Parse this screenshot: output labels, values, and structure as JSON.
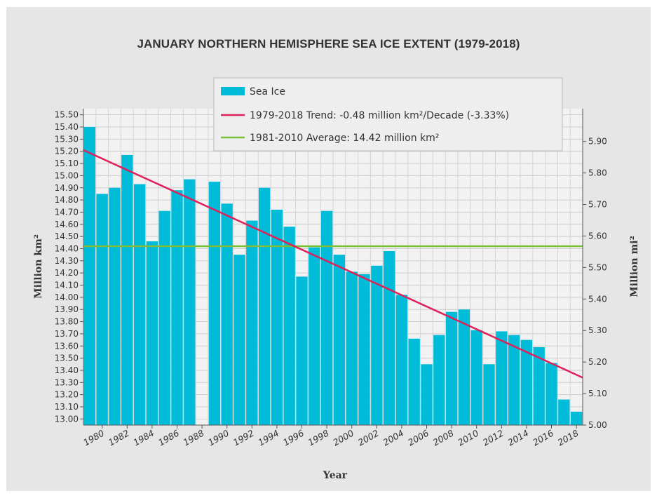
{
  "chart_data": {
    "type": "bar",
    "title": "JANUARY NORTHERN HEMISPHERE SEA ICE EXTENT (1979-2018)",
    "xlabel": "Year",
    "ylabel": "Million km²",
    "ylabel_right": "Million mi²",
    "ylim": [
      12.95,
      15.55
    ],
    "ylim_right_units": "mi²",
    "y_ticks": [
      "13.00",
      "13.10",
      "13.20",
      "13.30",
      "13.40",
      "13.50",
      "13.60",
      "13.70",
      "13.80",
      "13.90",
      "14.00",
      "14.10",
      "14.20",
      "14.30",
      "14.40",
      "14.50",
      "14.60",
      "14.70",
      "14.80",
      "14.90",
      "15.00",
      "15.10",
      "15.20",
      "15.30",
      "15.40",
      "15.50"
    ],
    "y_ticks_right": [
      "5.00",
      "5.10",
      "5.20",
      "5.30",
      "5.40",
      "5.50",
      "5.60",
      "5.70",
      "5.80",
      "5.90"
    ],
    "x_ticks": [
      "1980",
      "1982",
      "1984",
      "1986",
      "1988",
      "1990",
      "1992",
      "1994",
      "1996",
      "1998",
      "2000",
      "2002",
      "2004",
      "2006",
      "2008",
      "2010",
      "2012",
      "2014",
      "2016",
      "2018"
    ],
    "categories": [
      1979,
      1980,
      1981,
      1982,
      1983,
      1984,
      1985,
      1986,
      1987,
      1988,
      1989,
      1990,
      1991,
      1992,
      1993,
      1994,
      1995,
      1996,
      1997,
      1998,
      1999,
      2000,
      2001,
      2002,
      2003,
      2004,
      2005,
      2006,
      2007,
      2008,
      2009,
      2010,
      2011,
      2012,
      2013,
      2014,
      2015,
      2016,
      2017,
      2018
    ],
    "series": [
      {
        "name": "Sea Ice",
        "color": "#00bcd9",
        "values": [
          15.4,
          14.85,
          14.9,
          15.17,
          14.93,
          14.46,
          14.71,
          14.88,
          14.97,
          null,
          14.95,
          14.77,
          14.35,
          14.63,
          14.9,
          14.72,
          14.58,
          14.17,
          14.41,
          14.71,
          14.35,
          14.21,
          14.19,
          14.26,
          14.38,
          14.02,
          13.66,
          13.45,
          13.69,
          13.88,
          13.9,
          13.73,
          13.45,
          13.72,
          13.69,
          13.65,
          13.59,
          13.46,
          13.16,
          13.06
        ]
      }
    ],
    "trend": {
      "label": "1979-2018 Trend: -0.48 million km²/Decade (-3.33%)",
      "color": "#e0205a",
      "start_value": 15.21,
      "end_value": 13.34
    },
    "average": {
      "label": "1981-2010 Average: 14.42 million km²",
      "color": "#7dbf3b",
      "value": 14.42
    },
    "legend_position": "top-center",
    "grid": true
  }
}
